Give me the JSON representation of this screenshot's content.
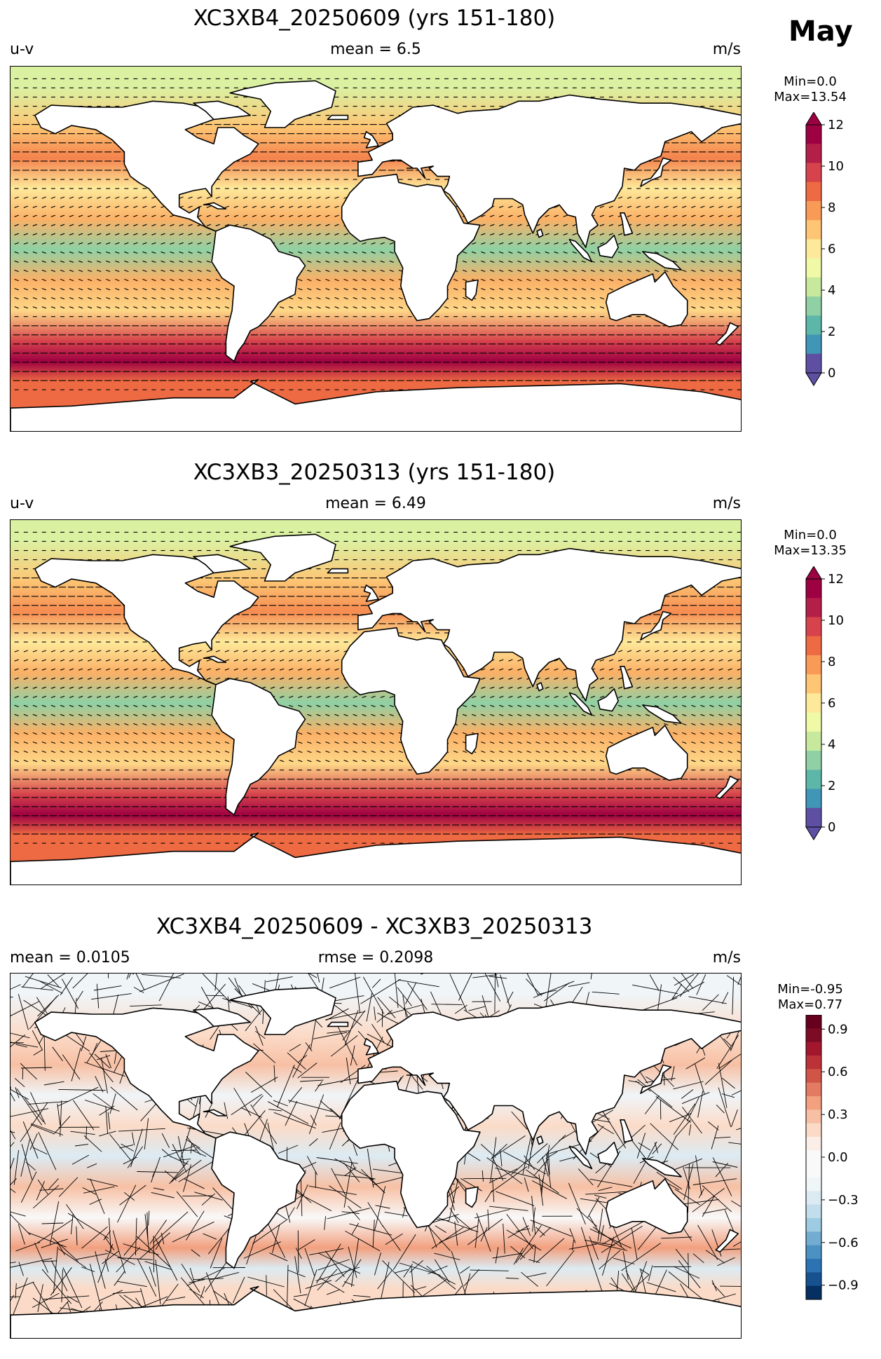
{
  "figure": {
    "month": "May",
    "panels": [
      {
        "title": "XC3XB4_20250609 (yrs 151-180)",
        "left_label": "u-v",
        "center_label": "mean = 6.5",
        "right_label": "m/s",
        "min_label": "Min=0.0",
        "max_label": "Max=13.54"
      },
      {
        "title": "XC3XB3_20250313 (yrs 151-180)",
        "left_label": "u-v",
        "center_label": "mean = 6.49",
        "right_label": "m/s",
        "min_label": "Min=0.0",
        "max_label": "Max=13.35"
      },
      {
        "title": "XC3XB4_20250609 - XC3XB3_20250313",
        "left_label": "mean = 0.0105",
        "center_label": "rmse = 0.2098",
        "right_label": "m/s",
        "min_label": "Min=-0.95",
        "max_label": "Max=0.77"
      }
    ]
  },
  "chart_data": [
    {
      "type": "heatmap",
      "title": "XC3XB4_20250609 (yrs 151-180)",
      "variable": "u-v",
      "units": "m/s",
      "mean": 6.5,
      "min": 0.0,
      "max": 13.54,
      "colorbar_ticks": [
        "0",
        "2",
        "4",
        "6",
        "8",
        "10",
        "12"
      ],
      "colorbar_levels": [
        0,
        1,
        2,
        3,
        4,
        5,
        6,
        7,
        8,
        9,
        10,
        11,
        12
      ],
      "colormap": [
        "#5e4fa2",
        "#3f96b7",
        "#5cb7a9",
        "#8fd1a4",
        "#c7e99e",
        "#eff9a6",
        "#fee99a",
        "#fdc574",
        "#f99b57",
        "#ee6a43",
        "#d6434c",
        "#b41f48",
        "#9e0142"
      ],
      "zonal_bands": [
        {
          "lat": 80,
          "value": 4.5
        },
        {
          "lat": 60,
          "value": 7.0
        },
        {
          "lat": 45,
          "value": 8.5
        },
        {
          "lat": 30,
          "value": 6.0
        },
        {
          "lat": 15,
          "value": 7.5
        },
        {
          "lat": 0,
          "value": 3.0
        },
        {
          "lat": -15,
          "value": 7.5
        },
        {
          "lat": -30,
          "value": 6.5
        },
        {
          "lat": -45,
          "value": 10.0
        },
        {
          "lat": -55,
          "value": 12.5
        },
        {
          "lat": -65,
          "value": 9.0
        }
      ]
    },
    {
      "type": "heatmap",
      "title": "XC3XB3_20250313 (yrs 151-180)",
      "variable": "u-v",
      "units": "m/s",
      "mean": 6.49,
      "min": 0.0,
      "max": 13.35,
      "colorbar_ticks": [
        "0",
        "2",
        "4",
        "6",
        "8",
        "10",
        "12"
      ],
      "colorbar_levels": [
        0,
        1,
        2,
        3,
        4,
        5,
        6,
        7,
        8,
        9,
        10,
        11,
        12
      ],
      "colormap": [
        "#5e4fa2",
        "#3f96b7",
        "#5cb7a9",
        "#8fd1a4",
        "#c7e99e",
        "#eff9a6",
        "#fee99a",
        "#fdc574",
        "#f99b57",
        "#ee6a43",
        "#d6434c",
        "#b41f48",
        "#9e0142"
      ],
      "zonal_bands": [
        {
          "lat": 80,
          "value": 4.5
        },
        {
          "lat": 60,
          "value": 7.0
        },
        {
          "lat": 45,
          "value": 8.3
        },
        {
          "lat": 30,
          "value": 6.0
        },
        {
          "lat": 15,
          "value": 7.5
        },
        {
          "lat": 0,
          "value": 3.0
        },
        {
          "lat": -15,
          "value": 7.5
        },
        {
          "lat": -30,
          "value": 6.5
        },
        {
          "lat": -45,
          "value": 10.0
        },
        {
          "lat": -55,
          "value": 12.5
        },
        {
          "lat": -65,
          "value": 9.0
        }
      ]
    },
    {
      "type": "heatmap",
      "title": "XC3XB4_20250609 - XC3XB3_20250313",
      "units": "m/s",
      "mean": 0.0105,
      "rmse": 0.2098,
      "min": -0.95,
      "max": 0.77,
      "colorbar_ticks": [
        "0.9",
        "0.6",
        "0.3",
        "0.0",
        "−0.3",
        "−0.6",
        "−0.9"
      ],
      "colorbar_levels": [
        -1.0,
        -0.9,
        -0.8,
        -0.7,
        -0.6,
        -0.5,
        -0.4,
        -0.3,
        -0.2,
        -0.1,
        0.0,
        0.1,
        0.2,
        0.3,
        0.4,
        0.5,
        0.6,
        0.7,
        0.8,
        0.9,
        1.0
      ],
      "colormap": [
        "#053061",
        "#175290",
        "#2c73b4",
        "#4b92c3",
        "#72acd1",
        "#9dcbe1",
        "#c2ddec",
        "#dcebf3",
        "#f0f5f8",
        "#f9f9f9",
        "#f9f9f9",
        "#fbeee6",
        "#fbdbc8",
        "#f7c0a4",
        "#f2a07e",
        "#e27b62",
        "#d05547",
        "#bc3239",
        "#a2172d",
        "#7d0b25",
        "#67001f"
      ],
      "zonal_bands": [
        {
          "lat": 80,
          "value": -0.2
        },
        {
          "lat": 60,
          "value": 0.2
        },
        {
          "lat": 45,
          "value": 0.3
        },
        {
          "lat": 30,
          "value": -0.2
        },
        {
          "lat": 15,
          "value": 0.2
        },
        {
          "lat": 0,
          "value": -0.3
        },
        {
          "lat": -15,
          "value": 0.3
        },
        {
          "lat": -30,
          "value": -0.1
        },
        {
          "lat": -45,
          "value": 0.4
        },
        {
          "lat": -55,
          "value": -0.3
        },
        {
          "lat": -65,
          "value": 0.2
        }
      ]
    }
  ]
}
